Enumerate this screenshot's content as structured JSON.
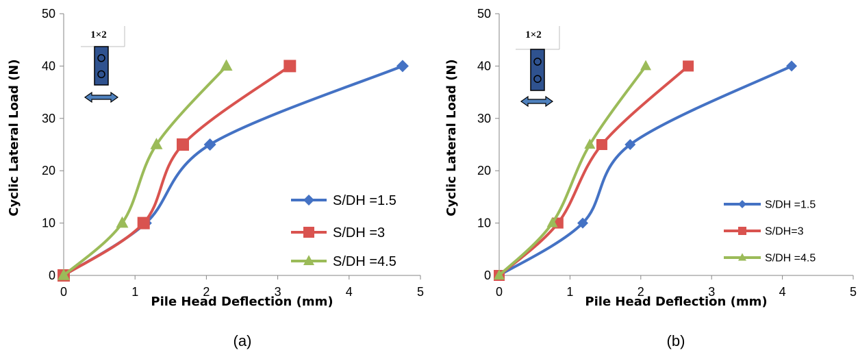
{
  "figure": {
    "captions": [
      "(a)",
      "(b)"
    ],
    "inset_label": "1×2"
  },
  "colors": {
    "blue": "#4472C4",
    "red": "#D9534F",
    "green": "#9BBB59",
    "pile": "#2F528F",
    "arrow": "#4F81BD"
  },
  "chart_data": [
    {
      "type": "line",
      "title": "",
      "xlabel": "Pile Head Deflection (mm)",
      "ylabel": "Cyclic Lateral Load (N)",
      "xlim": [
        0,
        5
      ],
      "ylim": [
        0,
        50
      ],
      "xticks": [
        "0",
        "1",
        "2",
        "3",
        "4",
        "5"
      ],
      "yticks": [
        "0",
        "10",
        "20",
        "30",
        "40",
        "50"
      ],
      "grid": false,
      "legend_position": "right",
      "series": [
        {
          "name": "S/DH =1.5",
          "marker": "diamond",
          "color": "#4472C4",
          "x": [
            0,
            1.15,
            2.05,
            4.75
          ],
          "y": [
            0,
            10,
            25,
            40
          ]
        },
        {
          "name": "S/DH =3",
          "marker": "square",
          "color": "#D9534F",
          "x": [
            0,
            1.12,
            1.67,
            3.17
          ],
          "y": [
            0,
            10,
            25,
            40
          ]
        },
        {
          "name": "S/DH =4.5",
          "marker": "triangle",
          "color": "#9BBB59",
          "x": [
            0,
            0.82,
            1.3,
            2.28
          ],
          "y": [
            0,
            10,
            25,
            40
          ]
        }
      ]
    },
    {
      "type": "line",
      "title": "",
      "xlabel": "Pile Head Deflection (mm)",
      "ylabel": "Cyclic Lateral Load (N)",
      "xlim": [
        0,
        5
      ],
      "ylim": [
        0,
        50
      ],
      "xticks": [
        "0",
        "1",
        "2",
        "3",
        "4",
        "5"
      ],
      "yticks": [
        "0",
        "10",
        "20",
        "30",
        "40",
        "50"
      ],
      "grid": false,
      "legend_position": "right",
      "series": [
        {
          "name": "S/DH =1.5",
          "marker": "diamond",
          "color": "#4472C4",
          "x": [
            0,
            1.18,
            1.85,
            4.13
          ],
          "y": [
            0,
            10,
            25,
            40
          ]
        },
        {
          "name": "S/DH=3",
          "marker": "square",
          "color": "#D9534F",
          "x": [
            0,
            0.83,
            1.45,
            2.67
          ],
          "y": [
            0,
            10,
            25,
            40
          ]
        },
        {
          "name": "S/DH =4.5",
          "marker": "triangle",
          "color": "#9BBB59",
          "x": [
            0,
            0.75,
            1.28,
            2.07
          ],
          "y": [
            0,
            10,
            25,
            40
          ]
        }
      ]
    }
  ]
}
